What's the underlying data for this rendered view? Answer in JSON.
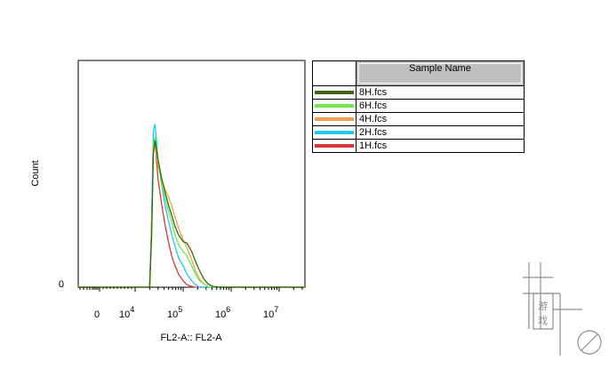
{
  "chart_data": {
    "type": "line",
    "xlabel": "FL2-A:: FL2-A",
    "ylabel": "Count",
    "x_scale": "biexponential",
    "x_ticks": [
      {
        "label": "0",
        "exp": ""
      },
      {
        "label": "10",
        "exp": "4"
      },
      {
        "label": "10",
        "exp": "5"
      },
      {
        "label": "10",
        "exp": "6"
      },
      {
        "label": "10",
        "exp": "7"
      }
    ],
    "y_ticks": [
      "0"
    ],
    "grid": false,
    "legend_position": "right",
    "legend_title": "Sample Name",
    "series": [
      {
        "name": "8H.fcs",
        "color": "#3a6410",
        "points": [
          [
            20000,
            0
          ],
          [
            22000,
            0.3
          ],
          [
            24000,
            0.82
          ],
          [
            26000,
            0.9
          ],
          [
            30000,
            0.78
          ],
          [
            36000,
            0.66
          ],
          [
            42000,
            0.58
          ],
          [
            50000,
            0.5
          ],
          [
            58000,
            0.44
          ],
          [
            66000,
            0.38
          ],
          [
            80000,
            0.32
          ],
          [
            100000,
            0.28
          ],
          [
            120000,
            0.27
          ],
          [
            150000,
            0.22
          ],
          [
            180000,
            0.16
          ],
          [
            220000,
            0.1
          ],
          [
            270000,
            0.05
          ],
          [
            330000,
            0.02
          ],
          [
            420000,
            0.005
          ],
          [
            600000,
            0
          ]
        ]
      },
      {
        "name": "6H.fcs",
        "color": "#6fe84a",
        "points": [
          [
            20000,
            0
          ],
          [
            22000,
            0.35
          ],
          [
            24000,
            0.88
          ],
          [
            26000,
            0.92
          ],
          [
            30000,
            0.76
          ],
          [
            36000,
            0.62
          ],
          [
            42000,
            0.55
          ],
          [
            50000,
            0.46
          ],
          [
            58000,
            0.4
          ],
          [
            66000,
            0.33
          ],
          [
            80000,
            0.26
          ],
          [
            100000,
            0.22
          ],
          [
            120000,
            0.19
          ],
          [
            150000,
            0.13
          ],
          [
            180000,
            0.08
          ],
          [
            220000,
            0.04
          ],
          [
            270000,
            0.02
          ],
          [
            330000,
            0.005
          ],
          [
            420000,
            0
          ]
        ]
      },
      {
        "name": "4H.fcs",
        "color": "#f0a050",
        "points": [
          [
            20000,
            0
          ],
          [
            22000,
            0.35
          ],
          [
            24000,
            0.84
          ],
          [
            26000,
            0.86
          ],
          [
            30000,
            0.74
          ],
          [
            36000,
            0.66
          ],
          [
            42000,
            0.6
          ],
          [
            50000,
            0.55
          ],
          [
            58000,
            0.5
          ],
          [
            66000,
            0.44
          ],
          [
            80000,
            0.36
          ],
          [
            100000,
            0.29
          ],
          [
            120000,
            0.24
          ],
          [
            150000,
            0.17
          ],
          [
            180000,
            0.1
          ],
          [
            220000,
            0.05
          ],
          [
            270000,
            0.02
          ],
          [
            330000,
            0.005
          ],
          [
            420000,
            0
          ]
        ]
      },
      {
        "name": "2H.fcs",
        "color": "#1ec8f0",
        "points": [
          [
            20000,
            0
          ],
          [
            22000,
            0.4
          ],
          [
            24000,
            0.96
          ],
          [
            26000,
            1.0
          ],
          [
            30000,
            0.78
          ],
          [
            36000,
            0.62
          ],
          [
            42000,
            0.5
          ],
          [
            50000,
            0.4
          ],
          [
            58000,
            0.32
          ],
          [
            66000,
            0.26
          ],
          [
            80000,
            0.18
          ],
          [
            100000,
            0.13
          ],
          [
            120000,
            0.08
          ],
          [
            150000,
            0.04
          ],
          [
            180000,
            0.015
          ],
          [
            220000,
            0
          ]
        ]
      },
      {
        "name": "1H.fcs",
        "color": "#d83838",
        "points": [
          [
            20000,
            0
          ],
          [
            22000,
            0.38
          ],
          [
            24000,
            0.9
          ],
          [
            26000,
            0.88
          ],
          [
            30000,
            0.66
          ],
          [
            36000,
            0.5
          ],
          [
            42000,
            0.38
          ],
          [
            50000,
            0.27
          ],
          [
            58000,
            0.19
          ],
          [
            66000,
            0.14
          ],
          [
            80000,
            0.08
          ],
          [
            100000,
            0.04
          ],
          [
            120000,
            0.015
          ],
          [
            150000,
            0.005
          ],
          [
            180000,
            0
          ]
        ]
      }
    ]
  },
  "watermark": {
    "chars": [
      "游",
      "戏"
    ]
  }
}
